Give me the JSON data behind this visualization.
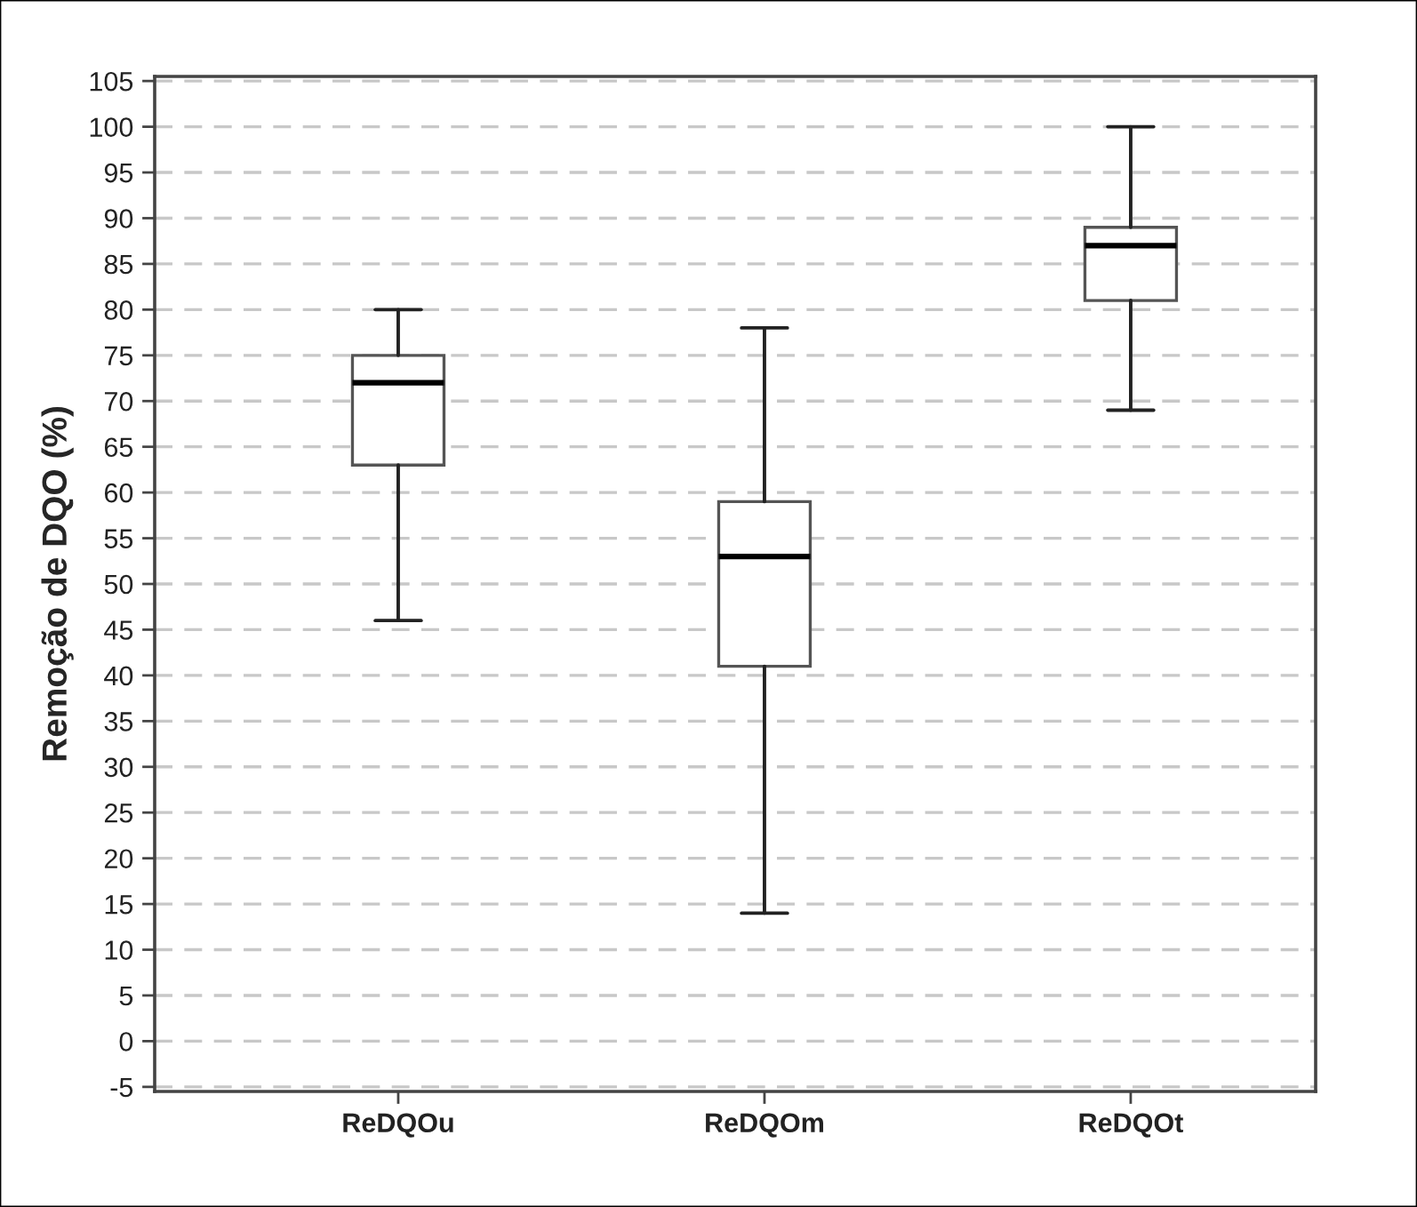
{
  "chart_data": {
    "type": "box",
    "ylabel": "Remoção de DQO (%)",
    "categories": [
      "ReDQOu",
      "ReDQOm",
      "ReDQOt"
    ],
    "boxes": [
      {
        "low": 46,
        "q1": 63,
        "median": 72,
        "q3": 75,
        "high": 80
      },
      {
        "low": 14,
        "q1": 41,
        "median": 53,
        "q3": 59,
        "high": 78
      },
      {
        "low": 69,
        "q1": 81,
        "median": 87,
        "q3": 89,
        "high": 100
      }
    ],
    "ylim": [
      -5.5,
      105.5
    ],
    "yticks": [
      -5,
      0,
      5,
      10,
      15,
      20,
      25,
      30,
      35,
      40,
      45,
      50,
      55,
      60,
      65,
      70,
      75,
      80,
      85,
      90,
      95,
      100,
      105
    ],
    "grid": "y"
  }
}
